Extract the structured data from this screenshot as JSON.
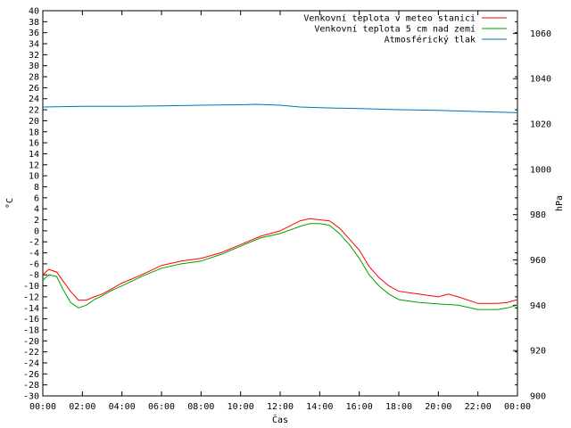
{
  "chart_data": {
    "type": "line",
    "xlabel": "Čas",
    "ylabel_left": "°C",
    "ylabel_right": "hPa",
    "x_ticks": [
      "00:00",
      "02:00",
      "04:00",
      "06:00",
      "08:00",
      "10:00",
      "12:00",
      "14:00",
      "16:00",
      "18:00",
      "20:00",
      "22:00",
      "00:00"
    ],
    "xlim_hours": [
      0,
      24
    ],
    "ylim_left": [
      -30,
      40
    ],
    "ylim_right": [
      900,
      1070
    ],
    "left_ticks": [
      40,
      38,
      36,
      34,
      32,
      30,
      28,
      26,
      24,
      22,
      20,
      18,
      16,
      14,
      12,
      10,
      8,
      6,
      4,
      2,
      0,
      -2,
      -4,
      -6,
      -8,
      -10,
      -12,
      -14,
      -16,
      -18,
      -20,
      -22,
      -24,
      -26,
      -28,
      -30
    ],
    "right_ticks": [
      1060,
      1040,
      1020,
      1000,
      980,
      960,
      940,
      920,
      900
    ],
    "grid": false,
    "legend_position": "top-right",
    "series": [
      {
        "name": "Venkovní teplota v meteo stanici",
        "axis": "left",
        "color": "#ff0000",
        "x": [
          0,
          0.3,
          0.7,
          1.0,
          1.4,
          1.8,
          2.2,
          2.6,
          3.0,
          3.5,
          4.0,
          5.0,
          6.0,
          7.0,
          8.0,
          9.0,
          10.0,
          11.0,
          12.0,
          13.0,
          13.5,
          14.0,
          14.5,
          15.0,
          15.5,
          16.0,
          16.5,
          17.0,
          17.5,
          18.0,
          19.0,
          20.0,
          20.5,
          21.0,
          22.0,
          23.0,
          23.5,
          24.0
        ],
        "y": [
          -8,
          -7,
          -7.5,
          -9,
          -11,
          -12.6,
          -12.6,
          -12,
          -11.5,
          -10.5,
          -9.5,
          -8,
          -6.3,
          -5.5,
          -5,
          -4,
          -2.5,
          -1,
          0,
          1.8,
          2.2,
          2,
          1.8,
          0.5,
          -1.5,
          -3.5,
          -6.5,
          -8.5,
          -10,
          -11,
          -11.5,
          -12,
          -11.5,
          -12,
          -13.2,
          -13.2,
          -13,
          -12.5
        ]
      },
      {
        "name": "Venkovní teplota 5 cm nad zemí",
        "axis": "left",
        "color": "#00a000",
        "x": [
          0,
          0.3,
          0.7,
          1.0,
          1.4,
          1.8,
          2.2,
          2.6,
          3.0,
          3.5,
          4.0,
          5.0,
          6.0,
          7.0,
          8.0,
          9.0,
          10.0,
          11.0,
          12.0,
          13.0,
          13.5,
          14.0,
          14.5,
          15.0,
          15.5,
          16.0,
          16.5,
          17.0,
          17.5,
          18.0,
          19.0,
          20.0,
          21.0,
          22.0,
          23.0,
          23.5,
          24.0
        ],
        "y": [
          -9,
          -8,
          -8.3,
          -10.5,
          -13,
          -14,
          -13.5,
          -12.5,
          -11.8,
          -10.8,
          -10,
          -8.3,
          -6.8,
          -6,
          -5.5,
          -4.3,
          -2.8,
          -1.3,
          -0.5,
          0.8,
          1.3,
          1.3,
          1,
          -0.5,
          -2.5,
          -5,
          -8,
          -10,
          -11.5,
          -12.5,
          -13,
          -13.3,
          -13.5,
          -14.3,
          -14.3,
          -14,
          -13.5
        ]
      },
      {
        "name": "Atmosférický tlak",
        "axis": "right",
        "color": "#0072bd",
        "x": [
          0,
          2,
          4,
          6,
          8,
          10,
          10.8,
          12,
          13,
          14,
          16,
          18,
          20,
          22,
          24
        ],
        "y": [
          1027.5,
          1027.8,
          1027.8,
          1028,
          1028.3,
          1028.5,
          1028.7,
          1028.3,
          1027.5,
          1027.2,
          1026.8,
          1026.3,
          1026,
          1025.5,
          1025
        ]
      }
    ]
  }
}
